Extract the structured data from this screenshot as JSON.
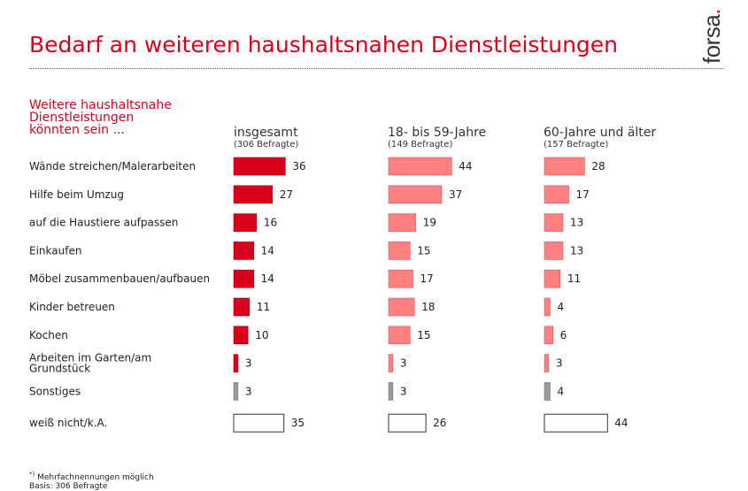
{
  "header": {
    "title": "Bedarf an weiteren haushaltsnahen Dienstleistungen",
    "logo_text": "forsa",
    "logo_dot": "."
  },
  "question": {
    "line1": "Weitere haushaltsnahe",
    "line2": "Dienstleistungen",
    "line3": "könnten sein ..."
  },
  "footer": {
    "marker": "*)",
    "note": " Mehrfachnennungen möglich",
    "basis": "Basis: 306 Befragte"
  },
  "colors": {
    "brand_red": "#d9001b",
    "light_red": "#ff8080",
    "gray": "#9a9a9a",
    "none": "#ffffff"
  },
  "chart_data": {
    "type": "bar",
    "orientation": "horizontal",
    "unit": "%",
    "categories": [
      [
        "Wände streichen/Malerarbeiten"
      ],
      [
        "Hilfe beim Umzug"
      ],
      [
        "auf die Haustiere aufpassen"
      ],
      [
        "Einkaufen"
      ],
      [
        "Möbel zusammenbauen/aufbauen"
      ],
      [
        "Kinder betreuen"
      ],
      [
        "Kochen"
      ],
      [
        "Arbeiten im Garten/am",
        "Grundstück"
      ],
      [
        "Sonstiges"
      ],
      [
        "weiß nicht/k.A."
      ]
    ],
    "category_kinds": [
      "item",
      "item",
      "item",
      "item",
      "item",
      "item",
      "item",
      "item",
      "other",
      "none"
    ],
    "series": [
      {
        "name": "insgesamt",
        "sublabel": "(306 Befragte)",
        "color": "#d9001b",
        "values": [
          36,
          27,
          16,
          14,
          14,
          11,
          10,
          3,
          3,
          35
        ]
      },
      {
        "name": "18- bis 59-Jahre",
        "sublabel": "(149 Befragte)",
        "color": "#ff8080",
        "values": [
          44,
          37,
          19,
          15,
          17,
          18,
          15,
          3,
          3,
          26
        ]
      },
      {
        "name": "60-Jahre und älter",
        "sublabel": "(157 Befragte)",
        "color": "#ff8080",
        "values": [
          28,
          17,
          13,
          13,
          11,
          4,
          6,
          3,
          4,
          44
        ]
      }
    ]
  }
}
